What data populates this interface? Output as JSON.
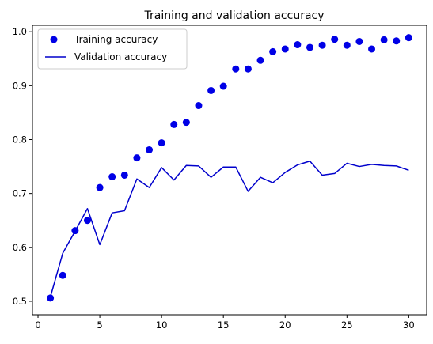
{
  "chart_data": {
    "type": "line",
    "title": "Training and validation accuracy",
    "xlabel": "",
    "ylabel": "",
    "xlim": [
      -0.45,
      31.45
    ],
    "ylim": [
      0.475,
      1.012
    ],
    "x_ticks": [
      0,
      5,
      10,
      15,
      20,
      25,
      30
    ],
    "y_ticks": [
      0.5,
      0.6,
      0.7,
      0.8,
      0.9,
      1.0
    ],
    "x_tick_labels": [
      "0",
      "5",
      "10",
      "15",
      "20",
      "25",
      "30"
    ],
    "y_tick_labels": [
      "0.5",
      "0.6",
      "0.7",
      "0.8",
      "0.9",
      "1.0"
    ],
    "grid": false,
    "legend_position": "top-left",
    "x": [
      1,
      2,
      3,
      4,
      5,
      6,
      7,
      8,
      9,
      10,
      11,
      12,
      13,
      14,
      15,
      16,
      17,
      18,
      19,
      20,
      21,
      22,
      23,
      24,
      25,
      26,
      27,
      28,
      29,
      30
    ],
    "series": [
      {
        "name": "Training accuracy",
        "style": "points",
        "color": "#0000e6",
        "values": [
          0.506,
          0.548,
          0.631,
          0.65,
          0.711,
          0.731,
          0.734,
          0.766,
          0.781,
          0.794,
          0.828,
          0.832,
          0.863,
          0.891,
          0.899,
          0.931,
          0.931,
          0.947,
          0.963,
          0.968,
          0.976,
          0.971,
          0.975,
          0.986,
          0.975,
          0.982,
          0.968,
          0.985,
          0.983,
          0.989
        ]
      },
      {
        "name": "Validation accuracy",
        "style": "line",
        "color": "#0000cc",
        "values": [
          0.508,
          0.589,
          0.63,
          0.672,
          0.605,
          0.664,
          0.668,
          0.727,
          0.711,
          0.748,
          0.725,
          0.752,
          0.751,
          0.73,
          0.749,
          0.749,
          0.704,
          0.73,
          0.72,
          0.739,
          0.753,
          0.76,
          0.734,
          0.737,
          0.756,
          0.75,
          0.754,
          0.752,
          0.751,
          0.743
        ]
      }
    ]
  }
}
